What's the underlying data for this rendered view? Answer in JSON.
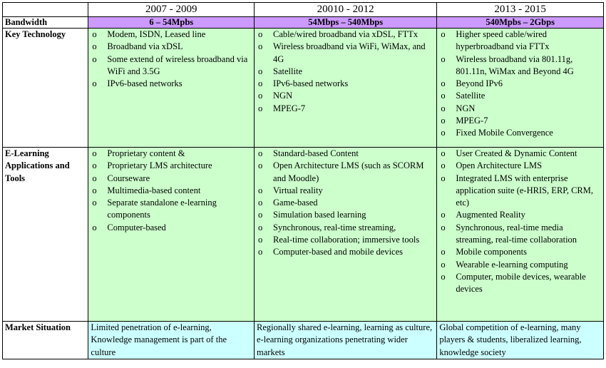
{
  "periods": [
    "2007 - 2009",
    "20010 - 2012",
    "2013 - 2015"
  ],
  "bandwidth": {
    "label": "Bandwidth",
    "values": [
      "6 – 54Mpbs",
      "54Mbps – 540Mbps",
      "540Mpbs – 2Gbps"
    ]
  },
  "key_technology": {
    "label": "Key Technology",
    "cols": [
      [
        "Modem, ISDN, Leased line",
        "Broadband via xDSL",
        "Some extend of wireless broadband via WiFi and 3.5G",
        "IPv6-based networks"
      ],
      [
        "Cable/wired broadband via xDSL, FTTx",
        "Wireless broadband via WiFi, WiMax, and 4G",
        "Satellite",
        "IPv6-based networks",
        "NGN",
        "MPEG-7"
      ],
      [
        "Higher speed cable/wired hyperbroadband via FTTx",
        "Wireless broadband via 801.11g, 801.11n, WiMax and Beyond 4G",
        "Beyond IPv6",
        "Satellite",
        "NGN",
        "MPEG-7",
        "Fixed Mobile Convergence"
      ]
    ]
  },
  "elearning": {
    "label": "E-Learning Applications and Tools",
    "cols": [
      [
        "Proprietary content &",
        "Proprietary LMS architecture",
        "Courseware",
        "Multimedia-based content",
        "Separate standalone e-learning components",
        "Computer-based"
      ],
      [
        "Standard-based Content",
        "Open Architecture LMS (such as SCORM and Moodle)",
        "Virtual reality",
        "Game-based",
        "Simulation based learning",
        "Synchronous, real-time streaming,",
        "Real-time collaboration; immersive tools",
        "Computer-based and mobile devices"
      ],
      [
        "User Created & Dynamic Content",
        "Open Architecture LMS",
        "Integrated LMS with enterprise application suite (e-HRIS, ERP, CRM, etc)",
        "Augmented Reality",
        "Synchronous, real-time media streaming, real-time collaboration",
        "Mobile components",
        "Wearable e-learning computing",
        "Computer, mobile devices, wearable devices"
      ]
    ]
  },
  "market": {
    "label": "Market Situation",
    "values": [
      "Limited penetration of e-learning, Knowledge management is part of the culture",
      "Regionally shared e-learning, learning as culture, e-learning organizations penetrating wider markets",
      "Global competition of e-learning, many players & students, liberalized learning, knowledge society"
    ]
  },
  "colors": {
    "bandwidth_row": "#cc99ff",
    "content_cells": "#ccffcc",
    "market_cells": "#ccffff"
  }
}
